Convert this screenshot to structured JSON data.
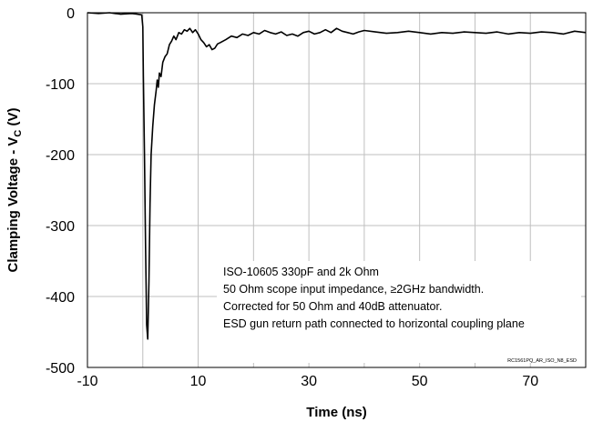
{
  "chart_data": {
    "type": "line",
    "xlabel": "Time (ns)",
    "ylabel_main": "Clamping Voltage  - V",
    "ylabel_sub": "C",
    "ylabel_tail": " (V)",
    "xlim": [
      -10,
      80
    ],
    "ylim": [
      -500,
      0
    ],
    "xticks": [
      -10,
      10,
      30,
      50,
      70
    ],
    "yticks": [
      0,
      -100,
      -200,
      -300,
      -400,
      -500
    ],
    "vgrid": [
      -10,
      0,
      10,
      20,
      30,
      40,
      50,
      60,
      70,
      80
    ],
    "hgrid": [
      0,
      -100,
      -200,
      -300,
      -400,
      -500
    ],
    "grid": true,
    "annotation_lines": [
      "ISO-10605 330pF and 2k Ohm",
      "50 Ohm scope input impedance, ≥2GHz bandwidth.",
      "Corrected for 50 Ohm and 40dB attenuator.",
      "ESD gun return path connected to horizontal coupling plane"
    ],
    "reference_id": "RC1561PQ_AR_ISO_N8_ESD",
    "series": [
      {
        "color": "#000000",
        "x": [
          -10,
          -8,
          -6,
          -4,
          -2,
          -1,
          -0.2,
          0,
          0.1,
          0.3,
          0.5,
          0.7,
          0.9,
          1.1,
          1.3,
          1.5,
          1.8,
          2.1,
          2.4,
          2.6,
          2.8,
          3.0,
          3.3,
          3.6,
          4.0,
          4.4,
          4.8,
          5.2,
          5.6,
          6.0,
          6.5,
          7.0,
          7.5,
          8.0,
          8.5,
          9.0,
          9.5,
          10.0,
          10.5,
          11.0,
          11.5,
          12.0,
          12.5,
          13.0,
          13.5,
          14.0,
          15.0,
          16.0,
          17.0,
          18.0,
          19.0,
          20.0,
          21.0,
          22.0,
          23.0,
          24.0,
          25.0,
          26.0,
          27.0,
          28.0,
          29.0,
          30.0,
          31.0,
          32.0,
          33.0,
          34.0,
          35.0,
          36.0,
          37.0,
          38.0,
          39.0,
          40.0,
          42.0,
          44.0,
          46.0,
          48.0,
          50.0,
          52.0,
          54.0,
          56.0,
          58.0,
          60.0,
          62.0,
          64.0,
          66.0,
          68.0,
          70.0,
          72.0,
          74.0,
          76.0,
          78.0,
          80.0
        ],
        "y": [
          0,
          -1,
          0,
          -2,
          -1,
          -2,
          -3,
          -20,
          -90,
          -200,
          -330,
          -440,
          -460,
          -380,
          -270,
          -200,
          -160,
          -130,
          -110,
          -95,
          -105,
          -85,
          -90,
          -70,
          -62,
          -58,
          -45,
          -40,
          -33,
          -38,
          -28,
          -30,
          -24,
          -26,
          -22,
          -28,
          -24,
          -30,
          -38,
          -42,
          -48,
          -45,
          -52,
          -50,
          -44,
          -42,
          -38,
          -33,
          -35,
          -30,
          -32,
          -28,
          -30,
          -25,
          -28,
          -30,
          -27,
          -32,
          -30,
          -33,
          -28,
          -26,
          -30,
          -28,
          -24,
          -28,
          -22,
          -26,
          -28,
          -30,
          -27,
          -25,
          -27,
          -29,
          -28,
          -26,
          -28,
          -30,
          -28,
          -29,
          -27,
          -28,
          -29,
          -27,
          -30,
          -28,
          -29,
          -27,
          -28,
          -30,
          -26,
          -28
        ]
      }
    ]
  }
}
